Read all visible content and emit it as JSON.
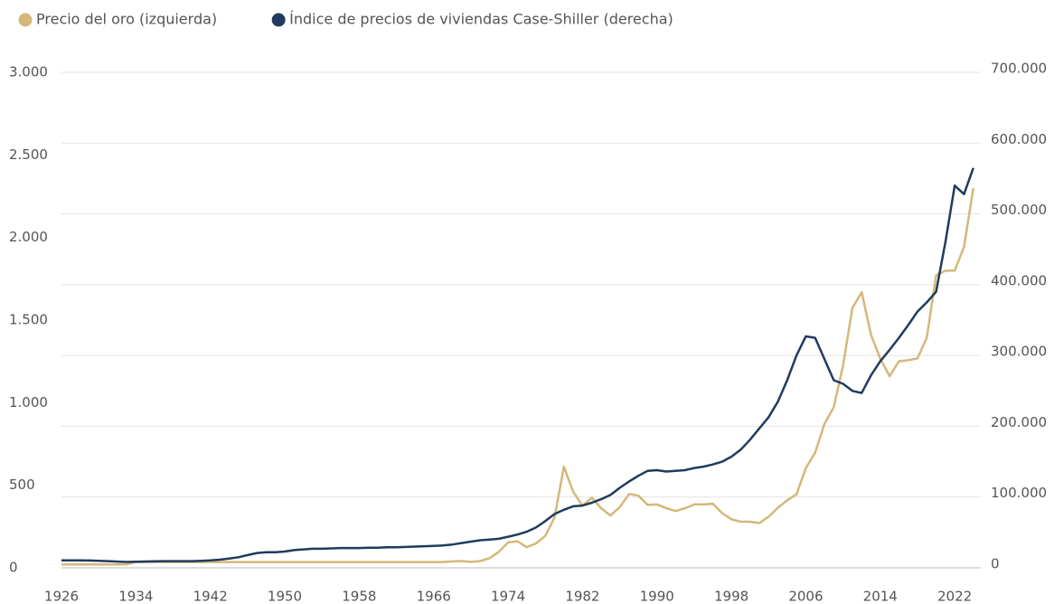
{
  "chart_data": {
    "type": "line",
    "series": [
      {
        "name": "Precio del oro (izquierda)",
        "color": "#d4b87a",
        "axis": "y",
        "values": [
          21,
          21,
          21,
          21,
          21,
          21,
          21,
          21,
          35,
          35,
          35,
          35,
          35,
          35,
          35,
          35,
          35,
          35,
          35,
          35,
          35,
          35,
          35,
          35,
          35,
          35,
          35,
          35,
          35,
          35,
          35,
          35,
          35,
          35,
          35,
          35,
          35,
          35,
          35,
          35,
          35,
          35,
          39,
          41,
          36,
          41,
          58,
          97,
          154,
          161,
          125,
          148,
          193,
          306,
          612,
          460,
          376,
          424,
          361,
          317,
          368,
          447,
          437,
          381,
          384,
          362,
          344,
          360,
          384,
          384,
          388,
          331,
          294,
          279,
          279,
          271,
          310,
          364,
          409,
          445,
          604,
          697,
          872,
          972,
          1225,
          1572,
          1669,
          1411,
          1266,
          1160,
          1251,
          1257,
          1268,
          1393,
          1770,
          1799,
          1800,
          1943,
          2300
        ]
      },
      {
        "name": "Índice de precios de viviendas Case-Shiller (derecha)",
        "color": "#1f3b5e",
        "axis": "y2",
        "values": [
          10500,
          10500,
          10500,
          10300,
          10000,
          9500,
          8800,
          8300,
          8500,
          9000,
          9300,
          9500,
          9500,
          9500,
          9500,
          10000,
          10500,
          11500,
          13000,
          15000,
          18000,
          21000,
          22000,
          22000,
          23000,
          25000,
          26000,
          27000,
          27000,
          27500,
          28000,
          28000,
          28000,
          28500,
          28500,
          29000,
          29000,
          29500,
          30000,
          30500,
          31000,
          31500,
          33000,
          35000,
          37000,
          39000,
          40000,
          41000,
          44000,
          47000,
          51000,
          57000,
          66000,
          76000,
          82000,
          87000,
          88000,
          92000,
          97000,
          103000,
          113000,
          122000,
          130000,
          137000,
          138000,
          136000,
          137000,
          138000,
          141000,
          143000,
          146000,
          150000,
          157000,
          167000,
          181000,
          197000,
          213000,
          235000,
          265000,
          300000,
          327000,
          325000,
          295000,
          265000,
          260000,
          250000,
          247000,
          272000,
          292000,
          308000,
          325000,
          343000,
          362000,
          375000,
          390000,
          460000,
          540000,
          528000,
          565000
        ]
      }
    ],
    "x": [
      1926,
      1927,
      1928,
      1929,
      1930,
      1931,
      1932,
      1933,
      1934,
      1935,
      1936,
      1937,
      1938,
      1939,
      1940,
      1941,
      1942,
      1943,
      1944,
      1945,
      1946,
      1947,
      1948,
      1949,
      1950,
      1951,
      1952,
      1953,
      1954,
      1955,
      1956,
      1957,
      1958,
      1959,
      1960,
      1961,
      1962,
      1963,
      1964,
      1965,
      1966,
      1967,
      1968,
      1969,
      1970,
      1971,
      1972,
      1973,
      1974,
      1975,
      1976,
      1977,
      1978,
      1979,
      1980,
      1981,
      1982,
      1983,
      1984,
      1985,
      1986,
      1987,
      1988,
      1989,
      1990,
      1991,
      1992,
      1993,
      1994,
      1995,
      1996,
      1997,
      1998,
      1999,
      2000,
      2001,
      2002,
      2003,
      2004,
      2005,
      2006,
      2007,
      2008,
      2009,
      2010,
      2011,
      2012,
      2013,
      2014,
      2015,
      2016,
      2017,
      2018,
      2019,
      2020,
      2021,
      2022,
      2023,
      2024
    ],
    "xlim": [
      1926,
      2025
    ],
    "xticks": [
      1926,
      1934,
      1942,
      1950,
      1958,
      1966,
      1974,
      1982,
      1990,
      1998,
      2006,
      2014,
      2022
    ],
    "ylim": [
      0,
      3000
    ],
    "yticks": [
      0,
      {
        "value": 500,
        "label": "500"
      },
      {
        "value": 1000,
        "label": "1.000"
      },
      {
        "value": 1500,
        "label": "1.500"
      },
      {
        "value": 2000,
        "label": "2.000"
      },
      {
        "value": 2500,
        "label": "2.500"
      },
      {
        "value": 3000,
        "label": "3.000"
      }
    ],
    "y2lim": [
      0,
      700000
    ],
    "y2ticks": [
      0,
      {
        "value": 100000,
        "label": "100.000"
      },
      {
        "value": 200000,
        "label": "200.000"
      },
      {
        "value": 300000,
        "label": "300.000"
      },
      {
        "value": 400000,
        "label": "400.000"
      },
      {
        "value": 500000,
        "label": "500.000"
      },
      {
        "value": 600000,
        "label": "600.000"
      },
      {
        "value": 700000,
        "label": "700.000"
      }
    ],
    "grid": true,
    "legend": "top-left"
  }
}
